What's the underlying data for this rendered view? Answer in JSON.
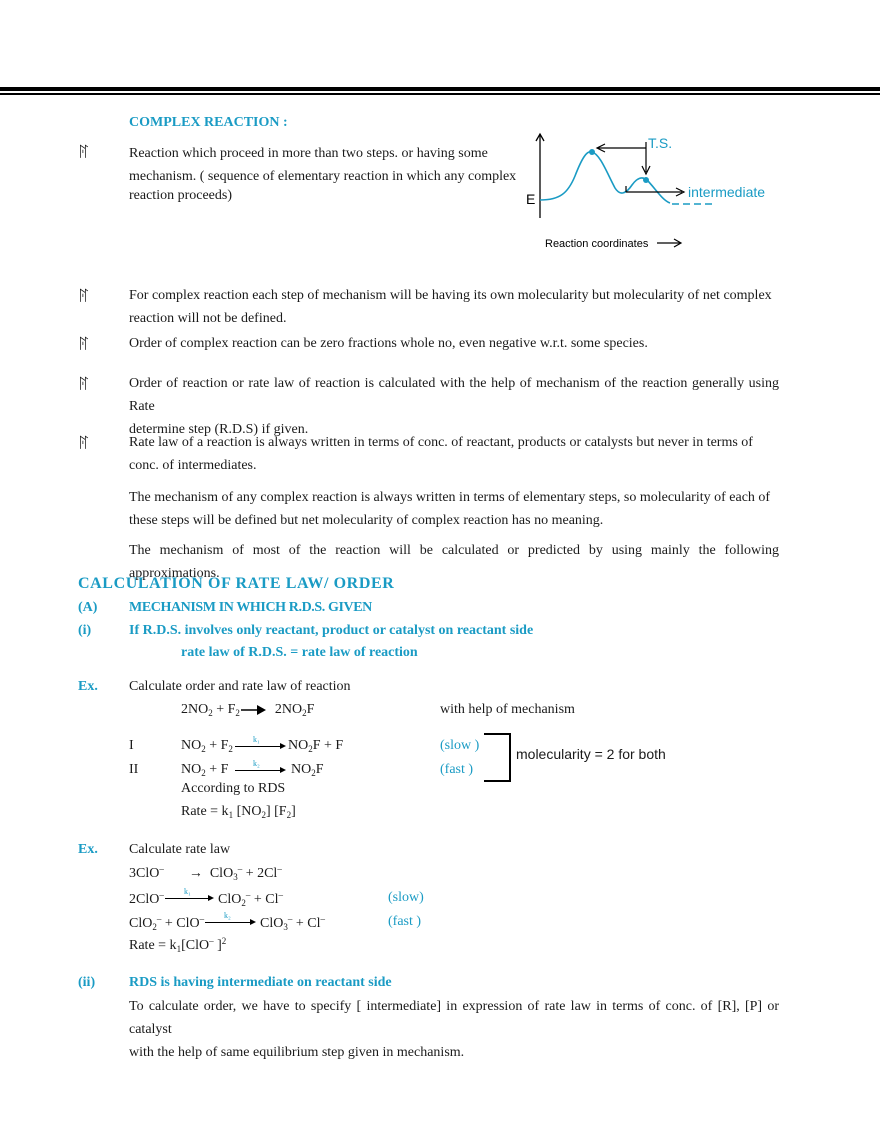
{
  "heading_complex": "COMPLEX REACTION :",
  "bullet_glyph": "ꊮ",
  "para1": [
    "Reaction which proceed in more than two steps. or having some",
    "mechanism. ( sequence of elementary reaction in which any complex",
    "reaction proceeds)"
  ],
  "graph": {
    "ts_label": "T.S.",
    "intermediate_label": "intermediate",
    "e_label": "E",
    "x_label": "Reaction coordinates",
    "line_color": "#1a9bc4"
  },
  "bullet2": [
    "For complex reaction each step of mechanism will be having its own molecularity but molecularity of net complex",
    "reaction will not be defined."
  ],
  "bullet3": "Order of complex reaction can be zero fractions whole no, even negative w.r.t. some species.",
  "bullet4": [
    "Order of reaction or rate law of reaction is calculated with the help of mechanism of the reaction generally using Rate",
    "determine step (R.D.S) if given."
  ],
  "bullet5": [
    "Rate law of a reaction is always written in terms of conc. of reactant, products or catalysts but  never in terms of",
    "conc. of intermediates."
  ],
  "para_mech1": [
    "The mechanism of any complex reaction is always written in terms of elementary steps, so molecularity of each of",
    "these steps will be defined but net molecularity of complex reaction has no meaning."
  ],
  "para_mech2": "The mechanism of most of the reaction will be calculated or predicted by using mainly the following approximations.",
  "heading_calc": "CALCULATION OF RATE LAW/ ORDER",
  "sec_a_label": "(A)",
  "sec_a_title": "MECHANISM IN WHICH R.D.S. GIVEN",
  "sub_i_label": "(i)",
  "sub_i_title": "If R.D.S. involves only reactant, product or catalyst on reactant side",
  "sub_i_rule": "rate law of R.D.S. = rate law of reaction",
  "ex_label": "Ex.",
  "ex1_title": "Calculate order and rate law of reaction",
  "ex1_mech_note": "with help of mechanism",
  "ex1_step1_label": "I",
  "ex1_step2_label": "II",
  "ex1_slow": "(slow )",
  "ex1_fast": "(fast )",
  "ex1_molecularity": "molecularity = 2 for both",
  "ex1_rds": "According  to RDS",
  "k1": "k₁",
  "k2": "k₂",
  "ex2_title": "Calculate rate law",
  "ex2_slow": "(slow)",
  "ex2_fast": "(fast )",
  "sub_ii_label": "(ii)",
  "sub_ii_title": "RDS is having intermediate on reactant side",
  "sub_ii_text": [
    "To calculate order, we have to specify [ intermediate] in expression of rate law in terms of conc. of [R],  [P] or catalyst",
    "with the help of same equilibrium step given in mechanism."
  ]
}
